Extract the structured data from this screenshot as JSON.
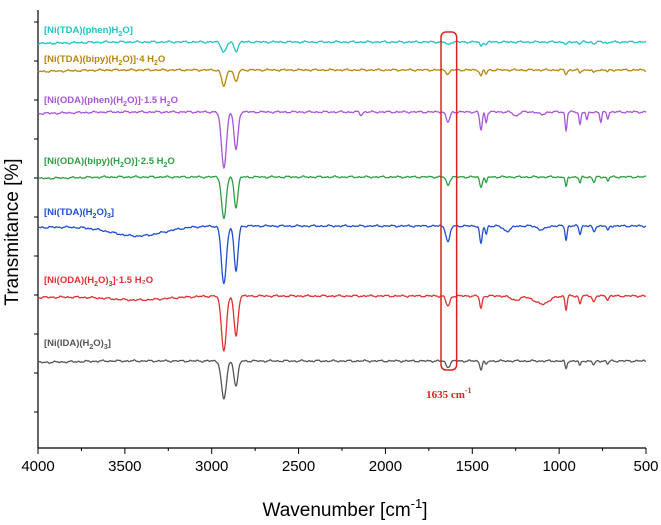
{
  "chart_data": {
    "type": "line",
    "title": "",
    "xlabel": "Wavenumber [cm",
    "xlabel_sup": "-1",
    "xlabel_end": "]",
    "ylabel": "Transmitance [%]",
    "xlim": [
      4000,
      500
    ],
    "x_reversed": true,
    "x_ticks": [
      "4000",
      "3500",
      "3000",
      "2500",
      "2000",
      "1500",
      "1000",
      "500"
    ],
    "x_tick_values": [
      4000,
      3500,
      3000,
      2500,
      2000,
      1500,
      1000,
      500
    ],
    "grid": false,
    "series": [
      {
        "name": "[Ni(TDA)(phen)H",
        "sub1": "2",
        "name_rest": "O]",
        "sub2": "",
        "name_tail": "",
        "color": "#1ec3c3",
        "offset": 0,
        "bands": [
          [
            2930,
            10,
            20
          ],
          [
            2860,
            9,
            16
          ],
          [
            1640,
            3,
            14
          ],
          [
            1450,
            4,
            10
          ],
          [
            1420,
            3,
            8
          ],
          [
            960,
            3,
            10
          ],
          [
            880,
            2,
            8
          ],
          [
            800,
            2,
            10
          ],
          [
            720,
            1.5,
            8
          ]
        ]
      },
      {
        "name": "[Ni(TDA)(bipy)(H",
        "sub1": "2",
        "name_rest": "O)]·4 H",
        "sub2": "2",
        "name_tail": "O",
        "color": "#b8860b",
        "offset": 1,
        "bands": [
          [
            2930,
            16,
            18
          ],
          [
            2860,
            12,
            15
          ],
          [
            1640,
            4,
            14
          ],
          [
            1450,
            6,
            10
          ],
          [
            1420,
            4,
            8
          ],
          [
            960,
            4,
            10
          ],
          [
            880,
            3,
            8
          ],
          [
            800,
            3,
            10
          ],
          [
            720,
            2,
            8
          ]
        ]
      },
      {
        "name": "[Ni(ODA)(phen)(H",
        "sub1": "2",
        "name_rest": "O)]·1.5 H",
        "sub2": "2",
        "name_tail": "O",
        "color": "#a855d9",
        "offset": 2,
        "bands": [
          [
            2930,
            55,
            20
          ],
          [
            2860,
            38,
            16
          ],
          [
            2140,
            3,
            10
          ],
          [
            1640,
            10,
            15
          ],
          [
            1450,
            18,
            10
          ],
          [
            1420,
            10,
            8
          ],
          [
            1250,
            4,
            20
          ],
          [
            1100,
            3,
            20
          ],
          [
            960,
            18,
            8
          ],
          [
            880,
            12,
            8
          ],
          [
            840,
            8,
            8
          ],
          [
            760,
            10,
            8
          ],
          [
            720,
            6,
            8
          ]
        ]
      },
      {
        "name": "[Ni(ODA)(bipy)(H",
        "sub1": "2",
        "name_rest": "O)]·2.5 H",
        "sub2": "2",
        "name_tail": "O",
        "color": "#2e9e44",
        "offset": 3,
        "bands": [
          [
            2930,
            42,
            18
          ],
          [
            2860,
            30,
            15
          ],
          [
            1640,
            8,
            14
          ],
          [
            1450,
            10,
            10
          ],
          [
            1420,
            6,
            8
          ],
          [
            960,
            10,
            8
          ],
          [
            880,
            6,
            8
          ],
          [
            800,
            5,
            10
          ],
          [
            720,
            4,
            8
          ]
        ]
      },
      {
        "name": "[Ni(TDA)(H",
        "sub1": "2",
        "name_rest": "O)",
        "sub2": "3",
        "name_tail": "]",
        "color": "#1f4fd1",
        "offset": 4,
        "bands": [
          [
            3430,
            10,
            220
          ],
          [
            2930,
            58,
            20
          ],
          [
            2860,
            45,
            16
          ],
          [
            1640,
            16,
            16
          ],
          [
            1450,
            18,
            10
          ],
          [
            1420,
            8,
            8
          ],
          [
            1300,
            5,
            30
          ],
          [
            1100,
            4,
            30
          ],
          [
            960,
            14,
            8
          ],
          [
            880,
            8,
            8
          ],
          [
            800,
            6,
            10
          ],
          [
            720,
            5,
            8
          ]
        ]
      },
      {
        "name": "[Ni(ODA)(H",
        "sub1": "2",
        "name_rest": "O)",
        "sub2": "3",
        "name_tail": "]·1.5 H₂O",
        "color": "#e03030",
        "offset": 5,
        "bands": [
          [
            3430,
            4,
            250
          ],
          [
            2930,
            54,
            20
          ],
          [
            2860,
            40,
            16
          ],
          [
            1640,
            10,
            16
          ],
          [
            1450,
            12,
            10
          ],
          [
            1250,
            4,
            40
          ],
          [
            1100,
            8,
            60
          ],
          [
            960,
            14,
            8
          ],
          [
            880,
            8,
            8
          ],
          [
            800,
            6,
            10
          ],
          [
            720,
            4,
            8
          ]
        ]
      },
      {
        "name": "[Ni(IDA)(H",
        "sub1": "2",
        "name_rest": "O)",
        "sub2": "3",
        "name_tail": "]",
        "color": "#555555",
        "offset": 6,
        "bands": [
          [
            2930,
            38,
            20
          ],
          [
            2860,
            25,
            16
          ],
          [
            1640,
            6,
            16
          ],
          [
            1450,
            8,
            10
          ],
          [
            1420,
            4,
            8
          ],
          [
            960,
            8,
            8
          ],
          [
            880,
            5,
            8
          ],
          [
            800,
            4,
            10
          ],
          [
            720,
            3,
            8
          ]
        ]
      }
    ],
    "annotation": {
      "text": "1635 cm",
      "sup": "-1",
      "x_range": [
        1680,
        1590
      ]
    }
  }
}
